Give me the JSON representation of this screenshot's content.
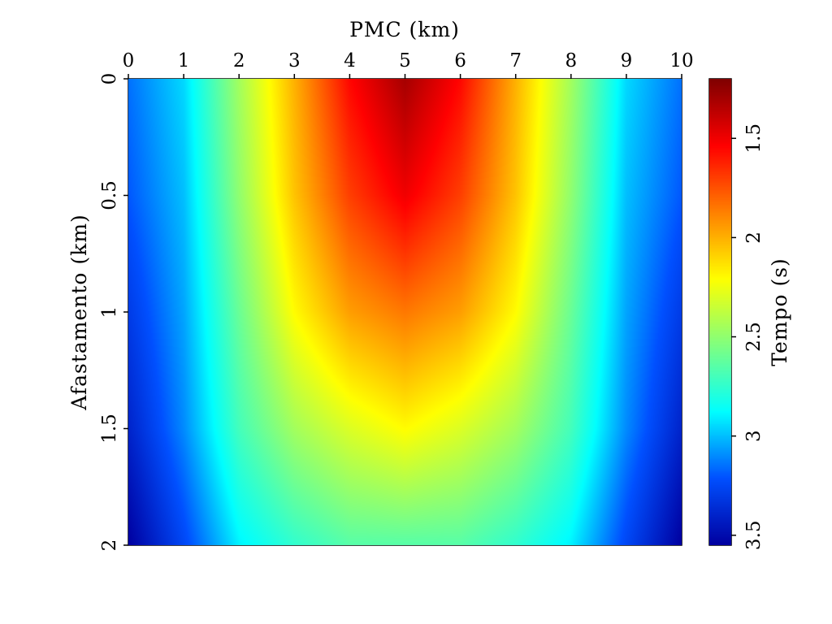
{
  "chart_data": {
    "type": "heatmap",
    "title": "",
    "xlabel": "PMC (km)",
    "ylabel": "Afastamento (km)",
    "colorbar_label": "Tempo (s)",
    "xlim": [
      0,
      10
    ],
    "ylim": [
      0,
      2
    ],
    "y_axis_direction": "downward",
    "x_axis_position": "top",
    "x_ticks": [
      0,
      1,
      2,
      3,
      4,
      5,
      6,
      7,
      8,
      9,
      10
    ],
    "x_tick_labels": [
      "0",
      "1",
      "2",
      "3",
      "4",
      "5",
      "6",
      "7",
      "8",
      "9",
      "10"
    ],
    "y_ticks": [
      0,
      0.5,
      1,
      1.5,
      2
    ],
    "y_tick_labels": [
      "0",
      "0.5",
      "1",
      "1.5",
      "2"
    ],
    "colorbar_range": [
      1.2,
      3.55
    ],
    "colorbar_direction": "values increase downward",
    "colorbar_ticks": [
      1.5,
      2,
      2.5,
      3,
      3.5
    ],
    "colorbar_tick_labels": [
      "1.5",
      "2",
      "2.5",
      "3",
      "3.5"
    ],
    "colormap": "jet (low = blue, high = dark red)",
    "colormap_stops": [
      "#0000a0",
      "#0050ff",
      "#00ffff",
      "#80ff80",
      "#ffff00",
      "#ff8000",
      "#ff0000",
      "#800000"
    ],
    "field": {
      "description": "traveltime surface: minimum near PMC 5 km at zero offset, increasing toward edges and larger offsets",
      "grid_x_km": [
        0,
        1,
        2,
        3,
        4,
        5,
        6,
        7,
        8,
        9,
        10
      ],
      "grid_y_km": [
        0,
        0.5,
        1.0,
        1.5,
        2.0
      ],
      "values_s": [
        [
          3.15,
          2.95,
          2.45,
          2.0,
          1.55,
          1.3,
          1.55,
          2.0,
          2.45,
          2.95,
          3.15
        ],
        [
          3.2,
          3.0,
          2.5,
          2.05,
          1.7,
          1.5,
          1.7,
          2.05,
          2.5,
          3.0,
          3.2
        ],
        [
          3.3,
          3.05,
          2.6,
          2.2,
          1.95,
          1.85,
          1.95,
          2.2,
          2.6,
          3.05,
          3.3
        ],
        [
          3.4,
          3.1,
          2.7,
          2.45,
          2.3,
          2.2,
          2.3,
          2.45,
          2.7,
          3.1,
          3.4
        ],
        [
          3.55,
          3.25,
          2.9,
          2.75,
          2.65,
          2.65,
          2.65,
          2.75,
          2.9,
          3.25,
          3.55
        ]
      ]
    }
  }
}
